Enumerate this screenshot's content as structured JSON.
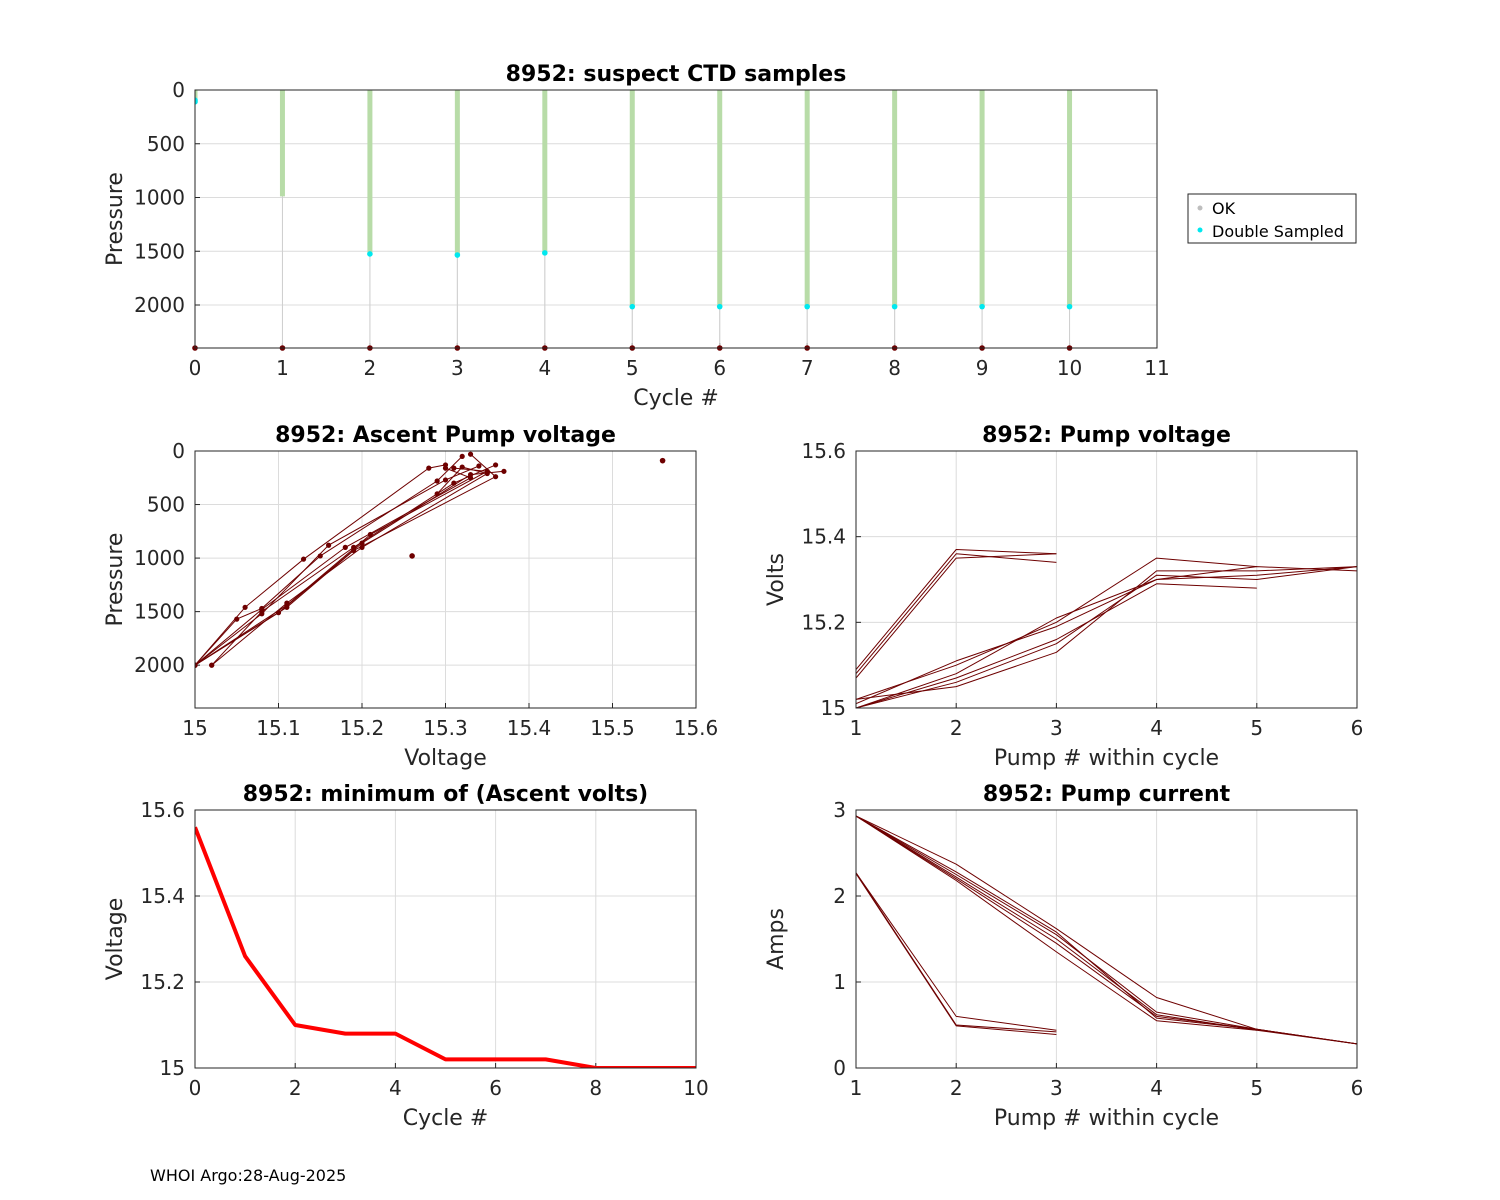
{
  "colors": {
    "ok": "#b8dca8",
    "ok_legend": "#bebebe",
    "double": "#00e8ef",
    "dark": "#6e0000",
    "red": "#ff0000",
    "grid": "#dcdcdc",
    "axis": "#262626"
  },
  "footer": "WHOI Argo:28-Aug-2025",
  "chart_data": [
    {
      "id": "ctd",
      "type": "scatter",
      "title": "8952: suspect CTD samples",
      "xlabel": "Cycle #",
      "ylabel": "Pressure",
      "xlim": [
        0,
        11
      ],
      "ylim": [
        0,
        2400
      ],
      "y_reversed": true,
      "xticks": [
        0,
        1,
        2,
        3,
        4,
        5,
        6,
        7,
        8,
        9,
        10,
        11
      ],
      "yticks": [
        0,
        500,
        1000,
        1500,
        2000
      ],
      "legend": {
        "position": "right-outside",
        "entries": [
          "OK",
          "Double Sampled"
        ]
      },
      "ok_profiles": [
        {
          "cycle": 0,
          "pmin": 0,
          "pmax": 90
        },
        {
          "cycle": 1,
          "pmin": 0,
          "pmax": 990
        },
        {
          "cycle": 2,
          "pmin": 0,
          "pmax": 1515
        },
        {
          "cycle": 3,
          "pmin": 0,
          "pmax": 1525
        },
        {
          "cycle": 4,
          "pmin": 0,
          "pmax": 1505
        },
        {
          "cycle": 5,
          "pmin": 0,
          "pmax": 2005
        },
        {
          "cycle": 6,
          "pmin": 0,
          "pmax": 2005
        },
        {
          "cycle": 7,
          "pmin": 0,
          "pmax": 2005
        },
        {
          "cycle": 8,
          "pmin": 0,
          "pmax": 2005
        },
        {
          "cycle": 9,
          "pmin": 0,
          "pmax": 2005
        },
        {
          "cycle": 10,
          "pmin": 0,
          "pmax": 2005
        }
      ],
      "double_sampled": [
        {
          "cycle": 0,
          "p": 95
        },
        {
          "cycle": 0,
          "p": 110
        },
        {
          "cycle": 2,
          "p": 1525
        },
        {
          "cycle": 3,
          "p": 1535
        },
        {
          "cycle": 4,
          "p": 1515
        },
        {
          "cycle": 5,
          "p": 2015
        },
        {
          "cycle": 6,
          "p": 2015
        },
        {
          "cycle": 7,
          "p": 2015
        },
        {
          "cycle": 8,
          "p": 2015
        },
        {
          "cycle": 9,
          "p": 2015
        },
        {
          "cycle": 10,
          "p": 2015
        }
      ],
      "bottom_markers": [
        0,
        1,
        2,
        3,
        4,
        5,
        6,
        7,
        8,
        9,
        10
      ],
      "bottom_marker_p": 2400
    },
    {
      "id": "ascent",
      "type": "scatter",
      "title": "8952: Ascent Pump voltage",
      "xlabel": "Voltage",
      "ylabel": "Pressure",
      "xlim": [
        15,
        15.6
      ],
      "ylim": [
        0,
        2400
      ],
      "y_reversed": true,
      "xticks": [
        15,
        15.1,
        15.2,
        15.3,
        15.4,
        15.5,
        15.6
      ],
      "yticks": [
        0,
        500,
        1000,
        1500,
        2000
      ],
      "isolated_points": [
        [
          15.56,
          90
        ],
        [
          15.26,
          980
        ]
      ],
      "paths": [
        [
          [
            15.0,
            2000
          ],
          [
            15.06,
            1460
          ],
          [
            15.13,
            1010
          ],
          [
            15.28,
            160
          ],
          [
            15.3,
            130
          ]
        ],
        [
          [
            15.0,
            2000
          ],
          [
            15.05,
            1570
          ],
          [
            15.08,
            1470
          ],
          [
            15.15,
            980
          ],
          [
            15.29,
            280
          ],
          [
            15.32,
            50
          ]
        ],
        [
          [
            15.0,
            2000
          ],
          [
            15.08,
            1520
          ],
          [
            15.16,
            880
          ],
          [
            15.3,
            270
          ],
          [
            15.34,
            140
          ]
        ],
        [
          [
            15.02,
            2000
          ],
          [
            15.08,
            1500
          ],
          [
            15.19,
            900
          ],
          [
            15.31,
            300
          ],
          [
            15.36,
            130
          ]
        ],
        [
          [
            15.0,
            2000
          ],
          [
            15.1,
            1510
          ],
          [
            15.2,
            860
          ],
          [
            15.33,
            220
          ],
          [
            15.37,
            190
          ]
        ],
        [
          [
            15.0,
            2000
          ],
          [
            15.11,
            1440
          ],
          [
            15.21,
            780
          ],
          [
            15.35,
            190
          ],
          [
            15.31,
            160
          ]
        ],
        [
          [
            15.0,
            2000
          ],
          [
            15.11,
            1460
          ],
          [
            15.19,
            930
          ],
          [
            15.36,
            240
          ],
          [
            15.33,
            30
          ]
        ],
        [
          [
            15.02,
            2000
          ],
          [
            15.11,
            1420
          ],
          [
            15.2,
            900
          ],
          [
            15.35,
            210
          ],
          [
            15.32,
            150
          ],
          [
            15.29,
            400
          ]
        ],
        [
          [
            15.0,
            2000
          ],
          [
            15.08,
            1480
          ],
          [
            15.18,
            900
          ],
          [
            15.33,
            250
          ],
          [
            15.3,
            160
          ]
        ]
      ]
    },
    {
      "id": "pumpv",
      "type": "line",
      "title": "8952: Pump voltage",
      "xlabel": "Pump # within cycle",
      "ylabel": "Volts",
      "xlim": [
        1,
        6
      ],
      "ylim": [
        15,
        15.6
      ],
      "xticks": [
        1,
        2,
        3,
        4,
        5,
        6
      ],
      "yticks": [
        15,
        15.2,
        15.4,
        15.6
      ],
      "series": [
        {
          "x": [
            1,
            2,
            3
          ],
          "y": [
            15.09,
            15.37,
            15.36
          ]
        },
        {
          "x": [
            1,
            2,
            3
          ],
          "y": [
            15.08,
            15.36,
            15.34
          ]
        },
        {
          "x": [
            1,
            2,
            3
          ],
          "y": [
            15.07,
            15.35,
            15.36
          ]
        },
        {
          "x": [
            1,
            2,
            3,
            4,
            5
          ],
          "y": [
            15.02,
            15.1,
            15.2,
            15.35,
            15.33
          ]
        },
        {
          "x": [
            1,
            2,
            3,
            4,
            5,
            6
          ],
          "y": [
            15.0,
            15.08,
            15.21,
            15.3,
            15.33,
            15.32
          ]
        },
        {
          "x": [
            1,
            2,
            3,
            4,
            5,
            6
          ],
          "y": [
            15.0,
            15.06,
            15.15,
            15.31,
            15.3,
            15.33
          ]
        },
        {
          "x": [
            1,
            2,
            3,
            4,
            5,
            6
          ],
          "y": [
            15.02,
            15.05,
            15.13,
            15.32,
            15.32,
            15.33
          ]
        },
        {
          "x": [
            1,
            2,
            3,
            4,
            5
          ],
          "y": [
            15.0,
            15.07,
            15.16,
            15.29,
            15.28
          ]
        },
        {
          "x": [
            1,
            2,
            3,
            4,
            5,
            6
          ],
          "y": [
            15.01,
            15.11,
            15.19,
            15.3,
            15.31,
            15.33
          ]
        }
      ]
    },
    {
      "id": "minv",
      "type": "line",
      "title": "8952: minimum of (Ascent volts)",
      "xlabel": "Cycle #",
      "ylabel": "Voltage",
      "xlim": [
        0,
        10
      ],
      "ylim": [
        15,
        15.6
      ],
      "xticks": [
        0,
        2,
        4,
        6,
        8,
        10
      ],
      "yticks": [
        15,
        15.2,
        15.4,
        15.6
      ],
      "series": [
        {
          "x": [
            0,
            1,
            2,
            3,
            4,
            5,
            6,
            7,
            8,
            9,
            10
          ],
          "y": [
            15.56,
            15.26,
            15.1,
            15.08,
            15.08,
            15.02,
            15.02,
            15.02,
            15.0,
            15.0,
            15.0
          ]
        }
      ]
    },
    {
      "id": "pumpc",
      "type": "line",
      "title": "8952: Pump current",
      "xlabel": "Pump # within cycle",
      "ylabel": "Amps",
      "xlim": [
        1,
        6
      ],
      "ylim": [
        0,
        3
      ],
      "xticks": [
        1,
        2,
        3,
        4,
        5,
        6
      ],
      "yticks": [
        0,
        1,
        2,
        3
      ],
      "series": [
        {
          "x": [
            1,
            2,
            3
          ],
          "y": [
            2.27,
            0.6,
            0.44
          ]
        },
        {
          "x": [
            1,
            2,
            3
          ],
          "y": [
            2.27,
            0.5,
            0.42
          ]
        },
        {
          "x": [
            1,
            2,
            3
          ],
          "y": [
            2.26,
            0.49,
            0.39
          ]
        },
        {
          "x": [
            1,
            2,
            3,
            4,
            5
          ],
          "y": [
            2.93,
            2.37,
            1.62,
            0.82,
            0.45
          ]
        },
        {
          "x": [
            1,
            2,
            3,
            4,
            5,
            6
          ],
          "y": [
            2.93,
            2.25,
            1.55,
            0.65,
            0.45,
            0.28
          ]
        },
        {
          "x": [
            1,
            2,
            3,
            4,
            5,
            6
          ],
          "y": [
            2.93,
            2.2,
            1.45,
            0.6,
            0.45,
            0.28
          ]
        },
        {
          "x": [
            1,
            2,
            3,
            4,
            5,
            6
          ],
          "y": [
            2.93,
            2.18,
            1.35,
            0.55,
            0.44,
            0.28
          ]
        },
        {
          "x": [
            1,
            2,
            3,
            4,
            5
          ],
          "y": [
            2.93,
            2.22,
            1.5,
            0.62,
            0.44
          ]
        },
        {
          "x": [
            1,
            2,
            3,
            4,
            5,
            6
          ],
          "y": [
            2.93,
            2.28,
            1.58,
            0.58,
            0.45,
            0.28
          ]
        }
      ]
    }
  ]
}
